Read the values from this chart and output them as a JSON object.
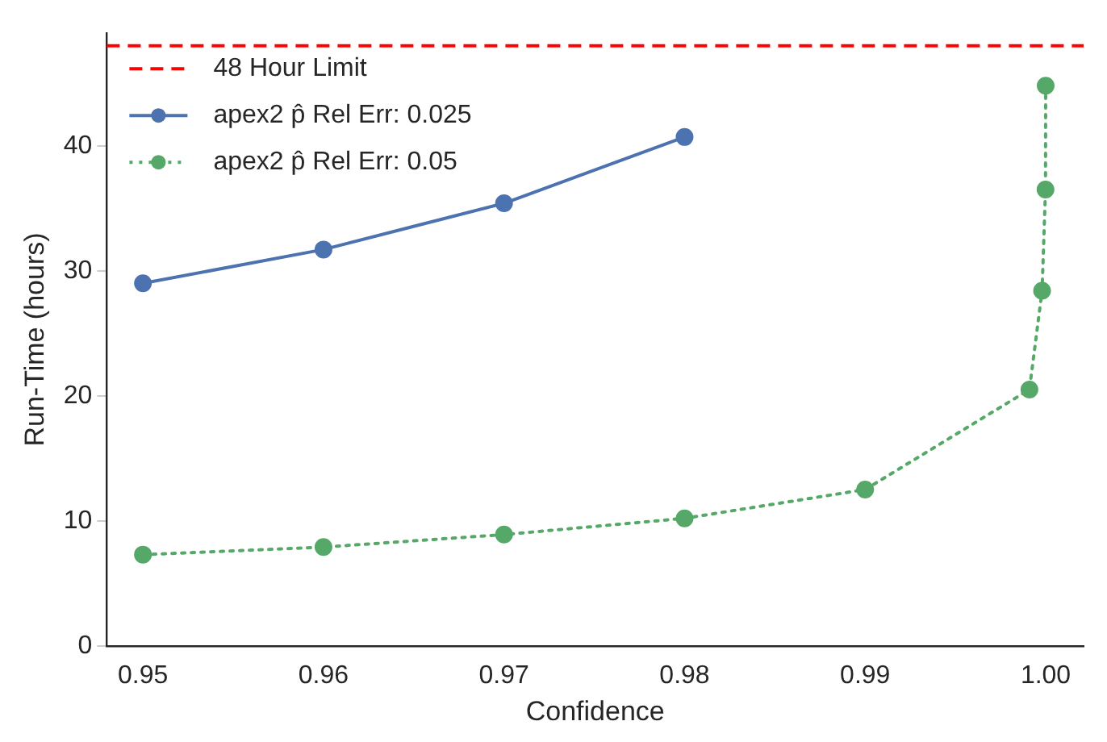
{
  "chart_data": {
    "type": "line",
    "xlabel": "Confidence",
    "ylabel": "Run-Time (hours)",
    "xlim": [
      0.948,
      1.0021
    ],
    "xticks": [
      0.95,
      0.96,
      0.97,
      0.98,
      0.99,
      {
        "value": 1.0,
        "label": "1.00"
      }
    ],
    "ylim": [
      0,
      49
    ],
    "yticks": [
      0,
      10,
      20,
      30,
      40
    ],
    "series": [
      {
        "name": "apex2 p̂ Rel Err: 0.025",
        "color": "#4c72b0",
        "line_style": "solid",
        "x": [
          0.95,
          0.96,
          0.97,
          0.98
        ],
        "values": [
          29.0,
          31.7,
          35.4,
          40.7
        ]
      },
      {
        "name": "apex2 p̂ Rel Err: 0.05",
        "color": "#55a868",
        "line_style": "dotted",
        "x": [
          0.95,
          0.96,
          0.97,
          0.98,
          0.99,
          0.9991,
          0.9998,
          0.99999,
          0.999999
        ],
        "values": [
          7.3,
          7.9,
          8.9,
          10.2,
          12.5,
          20.5,
          28.4,
          36.5,
          44.8
        ]
      }
    ],
    "ref_lines": [
      {
        "axis": "y",
        "value": 48,
        "label": "48 Hour Limit",
        "color": "#ff0000",
        "line_style": "dashed"
      }
    ],
    "marker": "circle",
    "grid": false,
    "legend": "top left"
  }
}
